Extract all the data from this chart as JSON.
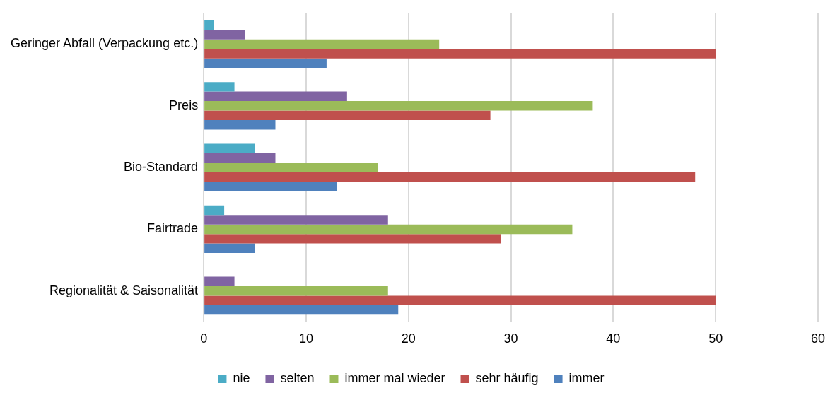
{
  "chart_data": {
    "type": "bar",
    "orientation": "horizontal",
    "categories": [
      "Geringer Abfall (Verpackung etc.)",
      "Preis",
      "Bio-Standard",
      "Fairtrade",
      "Regionalität & Saisonalität"
    ],
    "series": [
      {
        "name": "nie",
        "color": "#4bacc6",
        "values": [
          1,
          3,
          5,
          2,
          0
        ]
      },
      {
        "name": "selten",
        "color": "#8064a2",
        "values": [
          4,
          14,
          7,
          18,
          3
        ]
      },
      {
        "name": "immer mal wieder",
        "color": "#9bbb59",
        "values": [
          23,
          38,
          17,
          36,
          18
        ]
      },
      {
        "name": "sehr häufig",
        "color": "#c0504d",
        "values": [
          50,
          28,
          48,
          29,
          50
        ]
      },
      {
        "name": "immer",
        "color": "#4f81bd",
        "values": [
          12,
          7,
          13,
          5,
          19
        ]
      }
    ],
    "xlim": [
      0,
      60
    ],
    "xticks": [
      0,
      10,
      20,
      30,
      40,
      50,
      60
    ],
    "grid": "x",
    "legend": "bottom"
  }
}
